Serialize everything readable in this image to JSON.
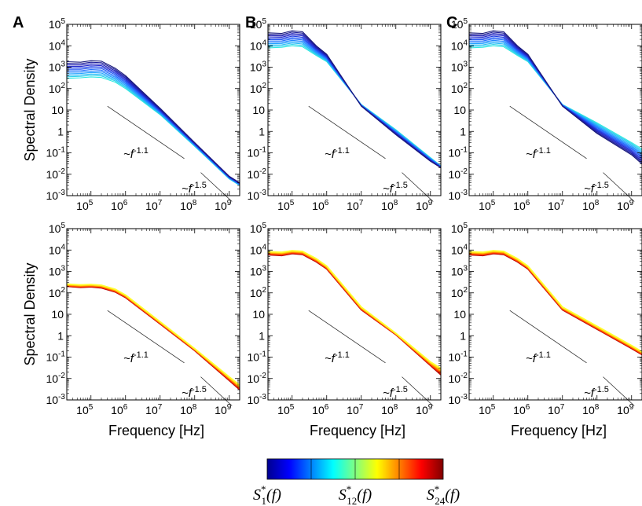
{
  "chart_data": [
    {
      "type": "line",
      "panel": "A",
      "row": "top",
      "palette": "cool",
      "panel_label": "A",
      "ylabel": "Spectral Density",
      "xlabel": "",
      "xlim": [
        20000,
        2000000000
      ],
      "ylim": [
        0.001,
        100000
      ],
      "x": [
        20000,
        50000,
        100000,
        200000,
        500000,
        1000000,
        10000000,
        100000000,
        1000000000,
        2000000000
      ],
      "series_first": [
        1800,
        1700,
        2000,
        1900,
        900,
        400,
        12,
        0.3,
        0.008,
        0.004
      ],
      "series_last": [
        300,
        320,
        350,
        330,
        200,
        100,
        6,
        0.2,
        0.006,
        0.003
      ],
      "n_series": 12,
      "annotations": [
        {
          "label": "~f",
          "exponent": "-1.1"
        },
        {
          "label": "~f",
          "exponent": "-1.5"
        }
      ]
    },
    {
      "type": "line",
      "panel": "B",
      "row": "top",
      "palette": "cool",
      "panel_label": "B",
      "ylabel": "",
      "xlabel": "",
      "xlim": [
        20000,
        2000000000
      ],
      "ylim": [
        0.001,
        100000
      ],
      "x": [
        20000,
        50000,
        100000,
        200000,
        500000,
        1000000,
        10000000,
        100000000,
        1000000000,
        2000000000
      ],
      "series_first": [
        40000,
        38000,
        50000,
        45000,
        10000,
        4000,
        15,
        0.7,
        0.04,
        0.02
      ],
      "series_last": [
        8000,
        8500,
        10000,
        9000,
        3500,
        1800,
        18,
        1.2,
        0.06,
        0.025
      ],
      "n_series": 12,
      "annotations": [
        {
          "label": "~f",
          "exponent": "-1.1"
        },
        {
          "label": "~f",
          "exponent": "-1.5"
        }
      ]
    },
    {
      "type": "line",
      "panel": "C",
      "row": "top",
      "palette": "cool",
      "panel_label": "C",
      "ylabel": "",
      "xlabel": "",
      "xlim": [
        20000,
        2000000000
      ],
      "ylim": [
        0.001,
        100000
      ],
      "x": [
        20000,
        50000,
        100000,
        200000,
        500000,
        1000000,
        10000000,
        100000000,
        1000000000,
        2000000000
      ],
      "series_first": [
        40000,
        38000,
        50000,
        45000,
        10000,
        4000,
        15,
        0.8,
        0.08,
        0.03
      ],
      "series_last": [
        8000,
        8500,
        10000,
        9000,
        3500,
        1800,
        18,
        2.5,
        0.3,
        0.15
      ],
      "n_series": 12,
      "annotations": [
        {
          "label": "~f",
          "exponent": "-1.1"
        },
        {
          "label": "~f",
          "exponent": "-1.5"
        }
      ]
    },
    {
      "type": "line",
      "panel": "A",
      "row": "bottom",
      "palette": "warm",
      "panel_label": "",
      "ylabel": "Spectral Density",
      "xlabel": "Frequency [Hz]",
      "xlim": [
        20000,
        2000000000
      ],
      "ylim": [
        0.001,
        100000
      ],
      "x": [
        20000,
        50000,
        100000,
        200000,
        500000,
        1000000,
        10000000,
        100000000,
        1000000000,
        2000000000
      ],
      "series_first": [
        260,
        240,
        250,
        230,
        150,
        80,
        4.5,
        0.25,
        0.012,
        0.005
      ],
      "series_last": [
        200,
        180,
        190,
        170,
        110,
        60,
        3.5,
        0.2,
        0.008,
        0.003
      ],
      "n_series": 12,
      "annotations": [
        {
          "label": "~f",
          "exponent": "-1.1"
        },
        {
          "label": "~f",
          "exponent": "-1.5"
        }
      ]
    },
    {
      "type": "line",
      "panel": "B",
      "row": "bottom",
      "palette": "warm",
      "panel_label": "",
      "ylabel": "",
      "xlabel": "Frequency [Hz]",
      "xlim": [
        20000,
        2000000000
      ],
      "ylim": [
        0.001,
        100000
      ],
      "x": [
        20000,
        50000,
        100000,
        200000,
        500000,
        1000000,
        10000000,
        100000000,
        1000000000,
        2000000000
      ],
      "series_first": [
        8500,
        8000,
        9500,
        8800,
        4000,
        1800,
        22,
        1.3,
        0.06,
        0.03
      ],
      "series_last": [
        6000,
        5500,
        6800,
        6200,
        2800,
        1300,
        16,
        1.1,
        0.04,
        0.015
      ],
      "n_series": 12,
      "annotations": [
        {
          "label": "~f",
          "exponent": "-1.1"
        },
        {
          "label": "~f",
          "exponent": "-1.5"
        }
      ]
    },
    {
      "type": "line",
      "panel": "C",
      "row": "bottom",
      "palette": "warm",
      "panel_label": "",
      "ylabel": "",
      "xlabel": "Frequency [Hz]",
      "xlim": [
        20000,
        2000000000
      ],
      "ylim": [
        0.001,
        100000
      ],
      "x": [
        20000,
        50000,
        100000,
        200000,
        500000,
        1000000,
        10000000,
        100000000,
        1000000000,
        2000000000
      ],
      "series_first": [
        8500,
        8000,
        9500,
        8800,
        4000,
        1800,
        22,
        2.8,
        0.35,
        0.18
      ],
      "series_last": [
        6000,
        5500,
        6800,
        6200,
        2800,
        1300,
        16,
        2.0,
        0.25,
        0.13
      ],
      "n_series": 12,
      "annotations": [
        {
          "label": "~f",
          "exponent": "-1.1"
        },
        {
          "label": "~f",
          "exponent": "-1.5"
        }
      ]
    }
  ],
  "axis": {
    "y_ticks": [
      {
        "value": 100000,
        "base": "10",
        "exp": "5"
      },
      {
        "value": 10000,
        "base": "10",
        "exp": "4"
      },
      {
        "value": 1000,
        "base": "10",
        "exp": "3"
      },
      {
        "value": 100,
        "base": "10",
        "exp": "2"
      },
      {
        "value": 10,
        "base": "10",
        "exp": ""
      },
      {
        "value": 1,
        "base": "1",
        "exp": ""
      },
      {
        "value": 0.1,
        "base": "10",
        "exp": "-1"
      },
      {
        "value": 0.01,
        "base": "10",
        "exp": "-2"
      },
      {
        "value": 0.001,
        "base": "10",
        "exp": "-3"
      }
    ],
    "x_ticks": [
      {
        "value": 100000,
        "base": "10",
        "exp": "5"
      },
      {
        "value": 1000000,
        "base": "10",
        "exp": "6"
      },
      {
        "value": 10000000,
        "base": "10",
        "exp": "7"
      },
      {
        "value": 100000000,
        "base": "10",
        "exp": "8"
      },
      {
        "value": 1000000000,
        "base": "10",
        "exp": "9"
      }
    ]
  },
  "colorbar": {
    "colors": [
      "#00008f",
      "#0000ff",
      "#0080ff",
      "#00ffff",
      "#80ff80",
      "#ffff00",
      "#ff8000",
      "#ff0000",
      "#800000"
    ],
    "labels": [
      {
        "base": "S",
        "sup": "*",
        "sub": "1",
        "arg": "(f)"
      },
      {
        "base": "S",
        "sup": "*",
        "sub": "12",
        "arg": "(f)"
      },
      {
        "base": "S",
        "sup": "*",
        "sub": "24",
        "arg": "(f)"
      }
    ]
  }
}
